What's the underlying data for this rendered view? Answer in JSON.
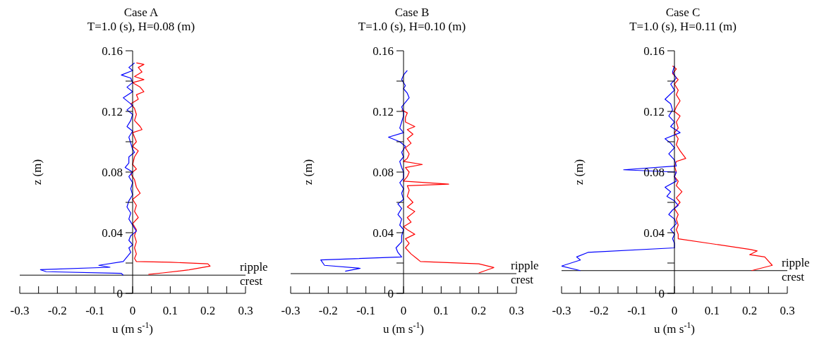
{
  "chart_data": [
    {
      "type": "line",
      "title": "Case A",
      "subtitle": "T=1.0 (s), H=0.08 (m)",
      "xlabel": "u (m s$^{-1}$)",
      "ylabel": "z (m)",
      "xlim": [
        -0.3,
        0.3
      ],
      "xticks": [
        -0.3,
        {
          "value": -0.25,
          "label": null
        },
        -0.2,
        {
          "value": -0.15,
          "label": null
        },
        -0.1,
        {
          "value": -0.05,
          "label": null
        },
        0,
        {
          "value": 0.05,
          "label": null
        },
        0.1,
        {
          "value": 0.15,
          "label": null
        },
        0.2,
        {
          "value": 0.25,
          "label": null
        },
        0.3
      ],
      "ylim": [
        0,
        0.16
      ],
      "yticks": [
        0,
        {
          "value": 0.02,
          "label": null
        },
        0.04,
        {
          "value": 0.06,
          "label": null
        },
        0.08,
        {
          "value": 0.1,
          "label": null
        },
        0.12,
        {
          "value": 0.14,
          "label": null
        },
        0.16
      ],
      "ref_lines": [
        {
          "axis": "y",
          "value": 0.012,
          "label": "ripple crest",
          "color": "#000000"
        }
      ],
      "series": [
        {
          "color": "#ff0000",
          "x": [
            0.01,
            0.03,
            0.015,
            0.025,
            0.005,
            0.03,
            0.0,
            0.02,
            0.03,
            0.01,
            0.015,
            -0.005,
            0.005,
            0.01,
            0.005,
            0.02,
            0.025,
            0.0,
            0.01,
            0.0,
            0.015,
            0.005,
            0.0,
            0.01,
            -0.005,
            0.005,
            0.01,
            0.02,
            0.0,
            0.01,
            0.005,
            0.015,
            0.0,
            0.01,
            0.005,
            0.01,
            0.005,
            0.01,
            0.005,
            0.01,
            0.1,
            0.2,
            0.206,
            0.15,
            0.08,
            0.042
          ],
          "values": [
            0.152,
            0.151,
            0.149,
            0.146,
            0.143,
            0.141,
            0.139,
            0.136,
            0.133,
            0.131,
            0.128,
            0.125,
            0.122,
            0.118,
            0.114,
            0.11,
            0.108,
            0.106,
            0.1,
            0.097,
            0.094,
            0.09,
            0.085,
            0.082,
            0.079,
            0.075,
            0.07,
            0.066,
            0.062,
            0.058,
            0.054,
            0.05,
            0.046,
            0.042,
            0.038,
            0.034,
            0.03,
            0.026,
            0.023,
            0.021,
            0.0205,
            0.0195,
            0.018,
            0.0155,
            0.0135,
            0.0125
          ]
        },
        {
          "color": "#0000ff",
          "x": [
            0.005,
            -0.01,
            0.0,
            -0.03,
            -0.005,
            0.0,
            -0.015,
            0.0,
            -0.025,
            -0.01,
            0.0,
            -0.015,
            0.0,
            -0.005,
            -0.015,
            0.0,
            -0.01,
            -0.005,
            0.0,
            0.005,
            -0.01,
            -0.01,
            -0.02,
            0.0,
            -0.01,
            0.0,
            -0.005,
            0.0,
            -0.01,
            -0.015,
            -0.005,
            -0.01,
            0.0,
            0.01,
            -0.005,
            -0.01,
            0.0,
            -0.01,
            -0.005,
            -0.015,
            -0.025,
            -0.09,
            -0.06,
            -0.245,
            -0.23,
            -0.03,
            -0.025
          ],
          "values": [
            0.152,
            0.149,
            0.147,
            0.144,
            0.142,
            0.139,
            0.136,
            0.133,
            0.129,
            0.126,
            0.124,
            0.121,
            0.118,
            0.114,
            0.11,
            0.107,
            0.103,
            0.099,
            0.095,
            0.093,
            0.09,
            0.086,
            0.083,
            0.08,
            0.077,
            0.073,
            0.069,
            0.065,
            0.061,
            0.057,
            0.053,
            0.049,
            0.045,
            0.041,
            0.038,
            0.035,
            0.032,
            0.03,
            0.027,
            0.024,
            0.021,
            0.0185,
            0.0172,
            0.0156,
            0.0143,
            0.0132,
            0.012
          ]
        }
      ]
    },
    {
      "type": "line",
      "title": "Case B",
      "subtitle": "T=1.0 (s), H=0.10 (m)",
      "xlabel": "u (m s$^{-1}$)",
      "ylabel": "z (m)",
      "xlim": [
        -0.3,
        0.3
      ],
      "xticks": [
        -0.3,
        {
          "value": -0.25,
          "label": null
        },
        -0.2,
        {
          "value": -0.15,
          "label": null
        },
        -0.1,
        {
          "value": -0.05,
          "label": null
        },
        0,
        {
          "value": 0.05,
          "label": null
        },
        0.1,
        {
          "value": 0.15,
          "label": null
        },
        0.2,
        {
          "value": 0.25,
          "label": null
        },
        0.3
      ],
      "ylim": [
        0,
        0.16
      ],
      "yticks": [
        0,
        {
          "value": 0.02,
          "label": null
        },
        0.04,
        {
          "value": 0.06,
          "label": null
        },
        0.08,
        {
          "value": 0.1,
          "label": null
        },
        0.12,
        {
          "value": 0.14,
          "label": null
        },
        0.16
      ],
      "ref_lines": [
        {
          "axis": "y",
          "value": 0.013,
          "label": "ripple crest",
          "color": "#000000"
        }
      ],
      "series": [
        {
          "color": "#ff0000",
          "x": [
            -0.005,
            0.01,
            0.005,
            0.005,
            0.03,
            0.01,
            0.025,
            0.01,
            0.02,
            0.005,
            0.015,
            0.01,
            0.0,
            0.05,
            0.005,
            0.015,
            0.01,
            0.0,
            0.12,
            0.01,
            0.015,
            0.01,
            0.025,
            0.01,
            0.03,
            0.01,
            0.02,
            0.0,
            0.01,
            0.03,
            0.005,
            0.015,
            0.005,
            0.02,
            0.035,
            0.045,
            0.2,
            0.24,
            0.2
          ],
          "values": [
            0.121,
            0.119,
            0.116,
            0.113,
            0.11,
            0.108,
            0.105,
            0.102,
            0.099,
            0.096,
            0.092,
            0.089,
            0.087,
            0.085,
            0.083,
            0.08,
            0.077,
            0.074,
            0.072,
            0.071,
            0.068,
            0.064,
            0.06,
            0.057,
            0.054,
            0.05,
            0.047,
            0.044,
            0.042,
            0.039,
            0.036,
            0.033,
            0.03,
            0.026,
            0.023,
            0.021,
            0.0195,
            0.017,
            0.0135
          ]
        },
        {
          "color": "#0000ff",
          "x": [
            0.01,
            0.0,
            -0.005,
            0.005,
            0.0,
            0.01,
            0.015,
            0.005,
            -0.005,
            0.0,
            0.0,
            -0.005,
            -0.01,
            0.0,
            -0.04,
            -0.01,
            0.005,
            -0.005,
            0.0,
            -0.01,
            -0.005,
            0.0,
            0.0,
            -0.01,
            0.0,
            -0.005,
            0.0,
            -0.015,
            -0.005,
            -0.015,
            -0.005,
            -0.01,
            0.0,
            -0.005,
            -0.005,
            -0.02,
            -0.015,
            -0.005,
            -0.22,
            -0.21,
            -0.115,
            -0.155
          ],
          "values": [
            0.147,
            0.144,
            0.141,
            0.137,
            0.135,
            0.132,
            0.129,
            0.126,
            0.123,
            0.12,
            0.117,
            0.113,
            0.109,
            0.106,
            0.103,
            0.1,
            0.097,
            0.093,
            0.09,
            0.087,
            0.083,
            0.08,
            0.076,
            0.073,
            0.069,
            0.066,
            0.062,
            0.059,
            0.056,
            0.052,
            0.049,
            0.045,
            0.042,
            0.038,
            0.034,
            0.03,
            0.027,
            0.024,
            0.022,
            0.0185,
            0.0165,
            0.0146
          ]
        }
      ]
    },
    {
      "type": "line",
      "title": "Case C",
      "subtitle": "T=1.0 (s), H=0.11 (m)",
      "xlabel": "u (m s$^{-1}$)",
      "ylabel": "z (m)",
      "xlim": [
        -0.3,
        0.3
      ],
      "xticks": [
        -0.3,
        {
          "value": -0.25,
          "label": null
        },
        -0.2,
        {
          "value": -0.15,
          "label": null
        },
        -0.1,
        {
          "value": -0.05,
          "label": null
        },
        0,
        {
          "value": 0.05,
          "label": null
        },
        0.1,
        {
          "value": 0.15,
          "label": null
        },
        0.2,
        {
          "value": 0.25,
          "label": null
        },
        0.3
      ],
      "ylim": [
        0,
        0.16
      ],
      "yticks": [
        0,
        {
          "value": 0.02,
          "label": null
        },
        0.04,
        {
          "value": 0.06,
          "label": null
        },
        0.08,
        {
          "value": 0.1,
          "label": null
        },
        0.12,
        {
          "value": 0.14,
          "label": null
        },
        0.16
      ],
      "ref_lines": [
        {
          "axis": "y",
          "value": 0.015,
          "label": "ripple crest",
          "color": "#000000"
        }
      ],
      "series": [
        {
          "color": "#ff0000",
          "x": [
            -0.005,
            0.005,
            -0.005,
            0.01,
            0.0,
            0.01,
            0.005,
            0.015,
            0.005,
            0.0,
            0.015,
            0.005,
            0.01,
            0.0,
            0.01,
            0.005,
            0.015,
            0.03,
            0.005,
            0.0,
            0.005,
            0.0,
            0.01,
            0.005,
            0.02,
            0.005,
            0.015,
            0.0,
            0.01,
            0.005,
            0.01,
            0.005,
            0.01,
            0.01,
            0.2,
            0.22,
            0.2,
            0.24,
            0.26,
            0.205
          ],
          "values": [
            0.15,
            0.148,
            0.145,
            0.141,
            0.138,
            0.134,
            0.131,
            0.127,
            0.123,
            0.12,
            0.117,
            0.113,
            0.109,
            0.106,
            0.102,
            0.098,
            0.094,
            0.089,
            0.087,
            0.084,
            0.08,
            0.077,
            0.074,
            0.071,
            0.067,
            0.063,
            0.06,
            0.056,
            0.052,
            0.049,
            0.045,
            0.042,
            0.039,
            0.036,
            0.029,
            0.028,
            0.0255,
            0.024,
            0.0185,
            0.015
          ]
        },
        {
          "color": "#0000ff",
          "x": [
            0.0,
            -0.005,
            0.005,
            -0.01,
            0.0,
            -0.025,
            -0.01,
            -0.005,
            -0.015,
            0.0,
            -0.01,
            0.015,
            -0.025,
            -0.01,
            0.0,
            -0.015,
            0.0,
            0.005,
            -0.135,
            0.005,
            0.0,
            0.005,
            -0.025,
            -0.01,
            -0.02,
            0.0,
            0.01,
            -0.005,
            -0.015,
            0.0,
            0.005,
            -0.01,
            0.0,
            -0.005,
            0.0,
            0.0,
            -0.23,
            -0.26,
            -0.25,
            -0.3,
            -0.25
          ],
          "values": [
            0.15,
            0.146,
            0.142,
            0.138,
            0.134,
            0.128,
            0.125,
            0.121,
            0.117,
            0.113,
            0.11,
            0.106,
            0.102,
            0.099,
            0.096,
            0.092,
            0.088,
            0.084,
            0.0815,
            0.08,
            0.077,
            0.074,
            0.07,
            0.067,
            0.064,
            0.061,
            0.058,
            0.055,
            0.052,
            0.049,
            0.046,
            0.042,
            0.039,
            0.036,
            0.033,
            0.03,
            0.027,
            0.024,
            0.022,
            0.018,
            0.015
          ]
        }
      ]
    }
  ]
}
